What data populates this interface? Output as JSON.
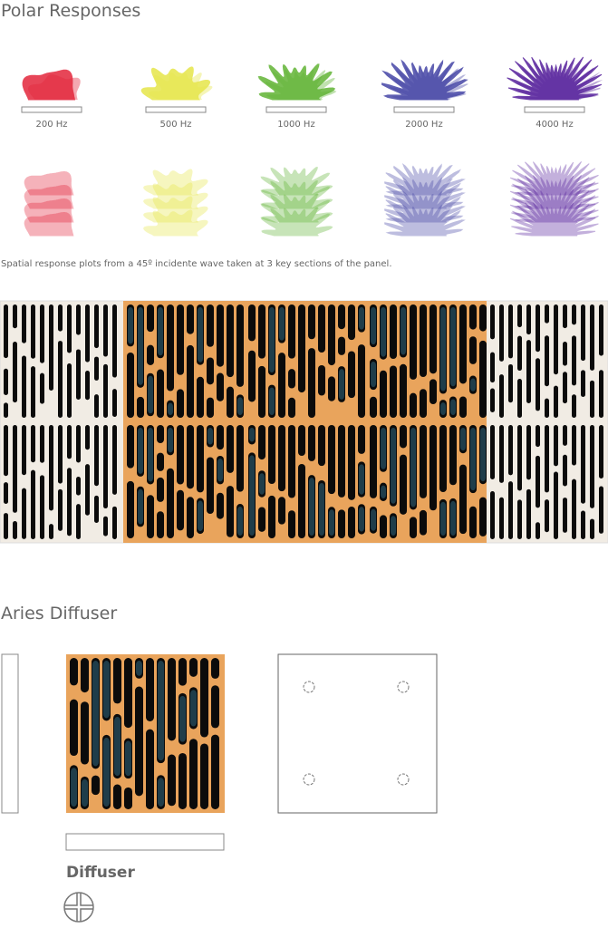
{
  "header": {
    "title": "Polar Responses"
  },
  "polar": {
    "labels": [
      "200 Hz",
      "500 Hz",
      "1000 Hz",
      "2000 Hz",
      "4000 Hz"
    ],
    "caption": "Spatial response plots from a 45º incidente wave taken at 3 key sections of the panel."
  },
  "product": {
    "title": "Aries Diffuser",
    "subtitle": "Diffuser"
  }
}
